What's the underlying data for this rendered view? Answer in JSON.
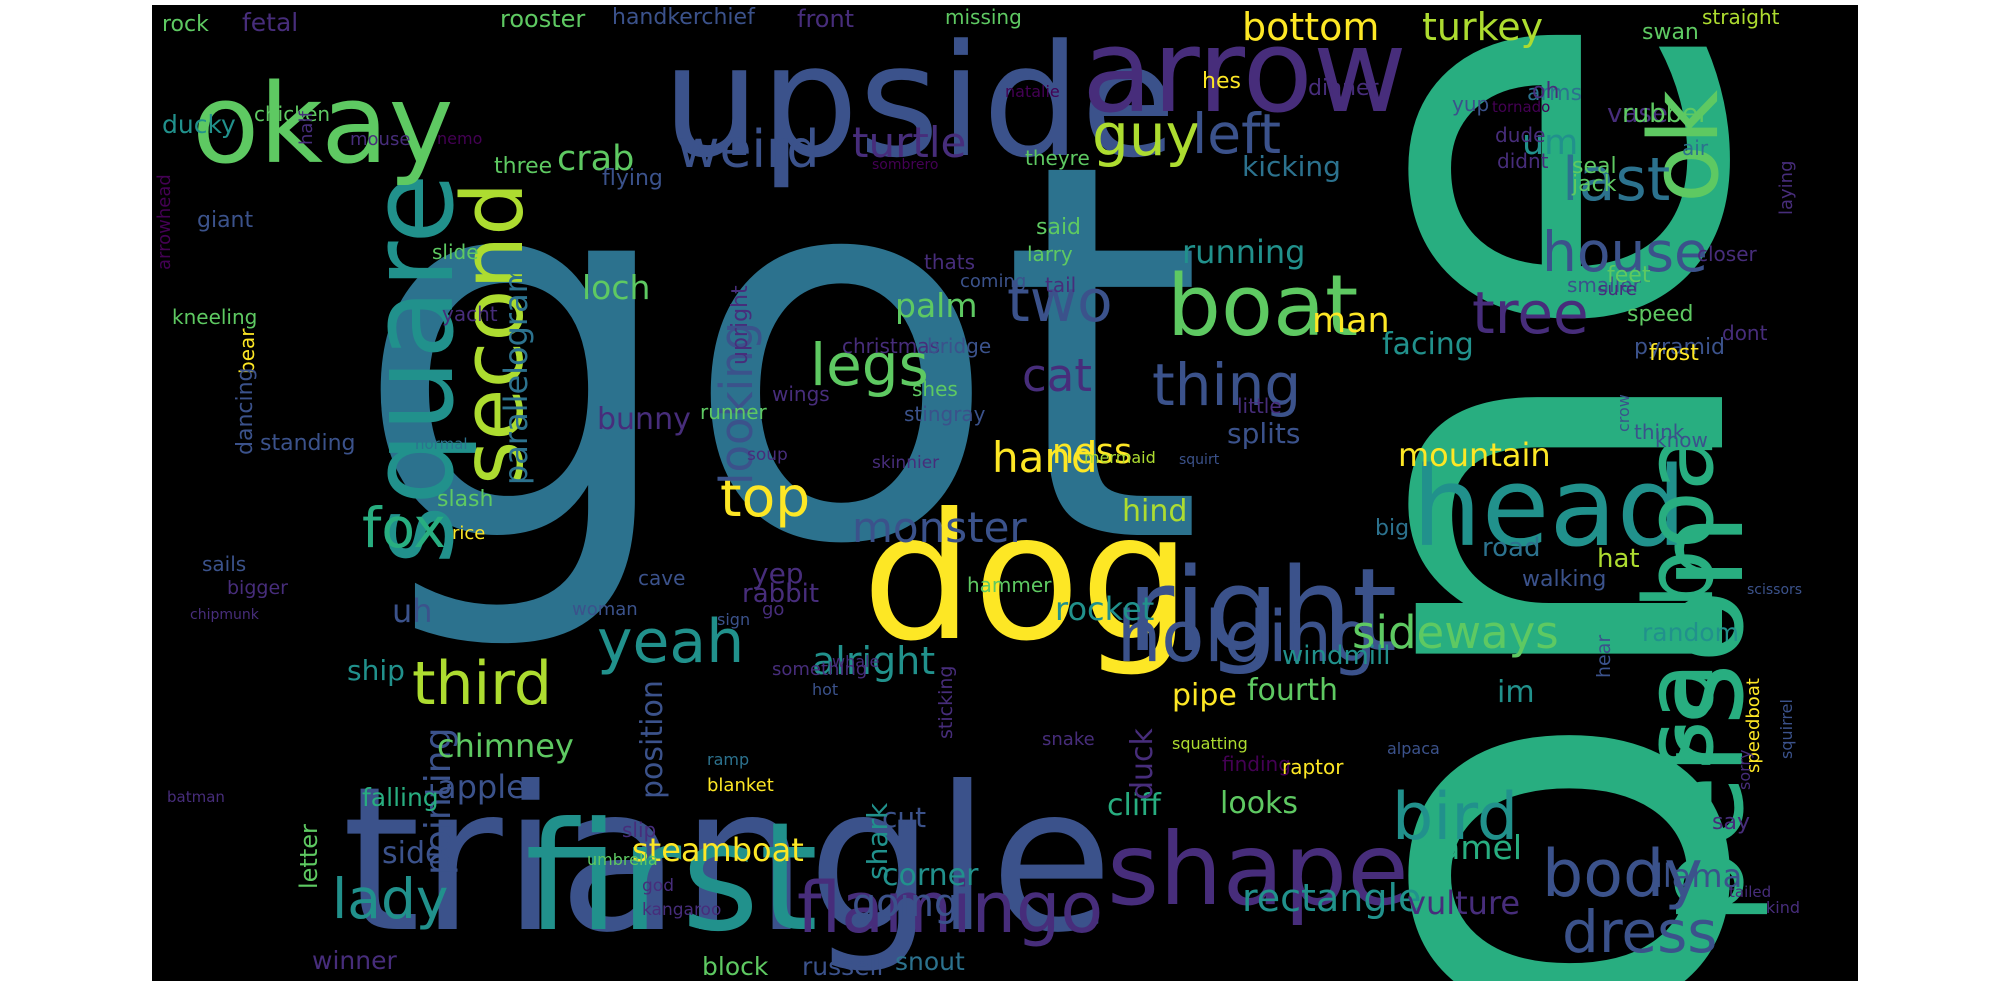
{
  "palette": {
    "background": "#000000",
    "colors": [
      "#440154",
      "#472d7b",
      "#3b528b",
      "#2c728e",
      "#21918c",
      "#28ae80",
      "#5ec962",
      "#addc30",
      "#fde725"
    ]
  },
  "words": [
    {
      "text": "got",
      "color": "#2c728e"
    },
    {
      "text": "one",
      "color": "#28ae80"
    },
    {
      "text": "triangle",
      "color": "#3b528b"
    },
    {
      "text": "upside",
      "color": "#3b528b"
    },
    {
      "text": "first",
      "color": "#21918c"
    },
    {
      "text": "dog",
      "color": "#fde725"
    },
    {
      "text": "person",
      "color": "#28ae80"
    },
    {
      "text": "square",
      "color": "#21918c"
    },
    {
      "text": "right",
      "color": "#3b528b"
    },
    {
      "text": "okay",
      "color": "#5ec962"
    },
    {
      "text": "arrow",
      "color": "#472d7b"
    },
    {
      "text": "head",
      "color": "#21918c"
    },
    {
      "text": "shape",
      "color": "#472d7b"
    },
    {
      "text": "sailboat",
      "color": "#28ae80"
    },
    {
      "text": "second",
      "color": "#addc30"
    },
    {
      "text": "boat",
      "color": "#5ec962"
    },
    {
      "text": "ok",
      "color": "#5ec962"
    },
    {
      "text": "holding",
      "color": "#3b528b"
    },
    {
      "text": "flamingo",
      "color": "#472d7b"
    },
    {
      "text": "bird",
      "color": "#21918c"
    },
    {
      "text": "body",
      "color": "#3b528b"
    },
    {
      "text": "dress",
      "color": "#3b528b"
    },
    {
      "text": "house",
      "color": "#3b528b"
    },
    {
      "text": "third",
      "color": "#addc30"
    },
    {
      "text": "yeah",
      "color": "#21918c"
    },
    {
      "text": "guy",
      "color": "#addc30"
    },
    {
      "text": "tree",
      "color": "#472d7b"
    },
    {
      "text": "two",
      "color": "#3b528b"
    },
    {
      "text": "thing",
      "color": "#3b528b"
    },
    {
      "text": "last",
      "color": "#2c728e"
    },
    {
      "text": "legs",
      "color": "#5ec962"
    },
    {
      "text": "lady",
      "color": "#21918c"
    },
    {
      "text": "left",
      "color": "#3b528b"
    },
    {
      "text": "weird",
      "color": "#3b528b"
    },
    {
      "text": "fox",
      "color": "#28ae80"
    },
    {
      "text": "top",
      "color": "#fde725"
    },
    {
      "text": "sideways",
      "color": "#5ec962"
    },
    {
      "text": "monster",
      "color": "#3b528b"
    },
    {
      "text": "cat",
      "color": "#472d7b"
    },
    {
      "text": "hand",
      "color": "#fde725"
    },
    {
      "text": "turtle",
      "color": "#472d7b"
    },
    {
      "text": "bottom",
      "color": "#fde725"
    },
    {
      "text": "turkey",
      "color": "#addc30"
    },
    {
      "text": "looking",
      "color": "#3b528b"
    },
    {
      "text": "alright",
      "color": "#21918c"
    },
    {
      "text": "going",
      "color": "#3b528b"
    },
    {
      "text": "rectangle",
      "color": "#21918c"
    },
    {
      "text": "vulture",
      "color": "#472d7b"
    },
    {
      "text": "parallelogram",
      "color": "#2c728e"
    },
    {
      "text": "pointing",
      "color": "#3b528b"
    },
    {
      "text": "mountain",
      "color": "#fde725"
    },
    {
      "text": "running",
      "color": "#21918c"
    },
    {
      "text": "man",
      "color": "#fde725"
    },
    {
      "text": "facing",
      "color": "#21918c"
    },
    {
      "text": "ness",
      "color": "#fde725"
    },
    {
      "text": "um",
      "color": "#21918c"
    },
    {
      "text": "crab",
      "color": "#5ec962"
    },
    {
      "text": "loch",
      "color": "#5ec962"
    },
    {
      "text": "palm",
      "color": "#5ec962"
    },
    {
      "text": "rocket",
      "color": "#21918c"
    },
    {
      "text": "camel",
      "color": "#28ae80"
    },
    {
      "text": "steamboat",
      "color": "#fde725"
    },
    {
      "text": "chimney",
      "color": "#5ec962"
    },
    {
      "text": "apple",
      "color": "#3b528b"
    },
    {
      "text": "uh",
      "color": "#3b528b"
    },
    {
      "text": "pipe",
      "color": "#fde725"
    },
    {
      "text": "fourth",
      "color": "#5ec962"
    },
    {
      "text": "im",
      "color": "#21918c"
    },
    {
      "text": "cliff",
      "color": "#28ae80"
    },
    {
      "text": "corner",
      "color": "#21918c"
    },
    {
      "text": "side",
      "color": "#3b528b"
    },
    {
      "text": "duck",
      "color": "#472d7b"
    },
    {
      "text": "llama",
      "color": "#3b528b"
    },
    {
      "text": "kicking",
      "color": "#2c728e"
    },
    {
      "text": "splits",
      "color": "#3b528b"
    },
    {
      "text": "looks",
      "color": "#5ec962"
    },
    {
      "text": "bunny",
      "color": "#472d7b"
    },
    {
      "text": "position",
      "color": "#3b528b"
    },
    {
      "text": "yep",
      "color": "#472d7b"
    },
    {
      "text": "hind",
      "color": "#addc30"
    },
    {
      "text": "cut",
      "color": "#3b528b"
    },
    {
      "text": "ship",
      "color": "#21918c"
    },
    {
      "text": "shark",
      "color": "#21918c"
    },
    {
      "text": "winner",
      "color": "#472d7b"
    },
    {
      "text": "block",
      "color": "#5ec962"
    },
    {
      "text": "russell",
      "color": "#3b528b"
    },
    {
      "text": "snout",
      "color": "#2c728e"
    },
    {
      "text": "random",
      "color": "#21918c"
    },
    {
      "text": "road",
      "color": "#2c728e"
    },
    {
      "text": "rabbit",
      "color": "#472d7b"
    },
    {
      "text": "windmill",
      "color": "#21918c"
    },
    {
      "text": "falling",
      "color": "#28ae80"
    },
    {
      "text": "letter",
      "color": "#5ec962"
    },
    {
      "text": "rooster",
      "color": "#5ec962"
    },
    {
      "text": "handkerchief",
      "color": "#3b528b"
    },
    {
      "text": "front",
      "color": "#472d7b"
    },
    {
      "text": "rock",
      "color": "#5ec962"
    },
    {
      "text": "fetal",
      "color": "#472d7b"
    },
    {
      "text": "missing",
      "color": "#5ec962"
    },
    {
      "text": "straight",
      "color": "#addc30"
    },
    {
      "text": "swan",
      "color": "#5ec962"
    },
    {
      "text": "yup",
      "color": "#3b528b"
    },
    {
      "text": "arms",
      "color": "#2c728e"
    },
    {
      "text": "oh",
      "color": "#472d7b"
    },
    {
      "text": "vase",
      "color": "#472d7b"
    },
    {
      "text": "rubber",
      "color": "#5ec962"
    },
    {
      "text": "hes",
      "color": "#fde725"
    },
    {
      "text": "dinner",
      "color": "#472d7b"
    },
    {
      "text": "natalie",
      "color": "#440154"
    },
    {
      "text": "tornado",
      "color": "#440154"
    },
    {
      "text": "ducky",
      "color": "#21918c"
    },
    {
      "text": "chicken",
      "color": "#5ec962"
    },
    {
      "text": "half",
      "color": "#472d7b"
    },
    {
      "text": "mouse",
      "color": "#472d7b"
    },
    {
      "text": "nemo",
      "color": "#440154"
    },
    {
      "text": "three",
      "color": "#5ec962"
    },
    {
      "text": "flying",
      "color": "#3b528b"
    },
    {
      "text": "sombrero",
      "color": "#440154"
    },
    {
      "text": "theyre",
      "color": "#5ec962"
    },
    {
      "text": "dude",
      "color": "#472d7b"
    },
    {
      "text": "didnt",
      "color": "#472d7b"
    },
    {
      "text": "seal",
      "color": "#5ec962"
    },
    {
      "text": "jack",
      "color": "#5ec962"
    },
    {
      "text": "air",
      "color": "#2c728e"
    },
    {
      "text": "closer",
      "color": "#472d7b"
    },
    {
      "text": "laying",
      "color": "#472d7b"
    },
    {
      "text": "arrowhead",
      "color": "#440154"
    },
    {
      "text": "giant",
      "color": "#3b528b"
    },
    {
      "text": "slide",
      "color": "#5ec962"
    },
    {
      "text": "larry",
      "color": "#5ec962"
    },
    {
      "text": "said",
      "color": "#5ec962"
    },
    {
      "text": "thats",
      "color": "#472d7b"
    },
    {
      "text": "coming",
      "color": "#3b528b"
    },
    {
      "text": "tail",
      "color": "#472d7b"
    },
    {
      "text": "smaller",
      "color": "#3b528b"
    },
    {
      "text": "sure",
      "color": "#472d7b"
    },
    {
      "text": "feet",
      "color": "#5ec962"
    },
    {
      "text": "speed",
      "color": "#5ec962"
    },
    {
      "text": "kneeling",
      "color": "#5ec962"
    },
    {
      "text": "yacht",
      "color": "#472d7b"
    },
    {
      "text": "christmas",
      "color": "#472d7b"
    },
    {
      "text": "bridge",
      "color": "#3b528b"
    },
    {
      "text": "pyramid",
      "color": "#3b528b"
    },
    {
      "text": "dont",
      "color": "#472d7b"
    },
    {
      "text": "frost",
      "color": "#fde725"
    },
    {
      "text": "upright",
      "color": "#472d7b"
    },
    {
      "text": "shes",
      "color": "#5ec962"
    },
    {
      "text": "crow",
      "color": "#3b528b"
    },
    {
      "text": "bear",
      "color": "#fde725"
    },
    {
      "text": "wings",
      "color": "#472d7b"
    },
    {
      "text": "runner",
      "color": "#5ec962"
    },
    {
      "text": "stingray",
      "color": "#3b528b"
    },
    {
      "text": "little",
      "color": "#472d7b"
    },
    {
      "text": "know",
      "color": "#3b528b"
    },
    {
      "text": "think",
      "color": "#3b528b"
    },
    {
      "text": "dancing",
      "color": "#3b528b"
    },
    {
      "text": "standing",
      "color": "#3b528b"
    },
    {
      "text": "normal",
      "color": "#2c728e"
    },
    {
      "text": "soup",
      "color": "#472d7b"
    },
    {
      "text": "skinnier",
      "color": "#472d7b"
    },
    {
      "text": "mermaid",
      "color": "#addc30"
    },
    {
      "text": "squirt",
      "color": "#3b528b"
    },
    {
      "text": "slash",
      "color": "#5ec962"
    },
    {
      "text": "rice",
      "color": "#fde725"
    },
    {
      "text": "big",
      "color": "#2c728e"
    },
    {
      "text": "hat",
      "color": "#addc30"
    },
    {
      "text": "walking",
      "color": "#3b528b"
    },
    {
      "text": "sails",
      "color": "#3b528b"
    },
    {
      "text": "bigger",
      "color": "#472d7b"
    },
    {
      "text": "cave",
      "color": "#3b528b"
    },
    {
      "text": "hammer",
      "color": "#5ec962"
    },
    {
      "text": "scissors",
      "color": "#3b528b"
    },
    {
      "text": "chipmunk",
      "color": "#472d7b"
    },
    {
      "text": "woman",
      "color": "#3b528b"
    },
    {
      "text": "go",
      "color": "#472d7b"
    },
    {
      "text": "hear",
      "color": "#3b528b"
    },
    {
      "text": "something",
      "color": "#472d7b"
    },
    {
      "text": "whale",
      "color": "#472d7b"
    },
    {
      "text": "sign",
      "color": "#3b528b"
    },
    {
      "text": "hot",
      "color": "#3b528b"
    },
    {
      "text": "sticking",
      "color": "#472d7b"
    },
    {
      "text": "squatting",
      "color": "#addc30"
    },
    {
      "text": "snake",
      "color": "#472d7b"
    },
    {
      "text": "alpaca",
      "color": "#3b528b"
    },
    {
      "text": "squirrel",
      "color": "#3b528b"
    },
    {
      "text": "speedboat",
      "color": "#fde725"
    },
    {
      "text": "batman",
      "color": "#472d7b"
    },
    {
      "text": "ramp",
      "color": "#2c728e"
    },
    {
      "text": "finding",
      "color": "#440154"
    },
    {
      "text": "raptor",
      "color": "#fde725"
    },
    {
      "text": "blanket",
      "color": "#fde725"
    },
    {
      "text": "sorry",
      "color": "#472d7b"
    },
    {
      "text": "slip",
      "color": "#472d7b"
    },
    {
      "text": "say",
      "color": "#472d7b"
    },
    {
      "text": "umbrella",
      "color": "#5ec962"
    },
    {
      "text": "god",
      "color": "#472d7b"
    },
    {
      "text": "kangaroo",
      "color": "#472d7b"
    },
    {
      "text": "tailed",
      "color": "#472d7b"
    },
    {
      "text": "kind",
      "color": "#472d7b"
    }
  ]
}
